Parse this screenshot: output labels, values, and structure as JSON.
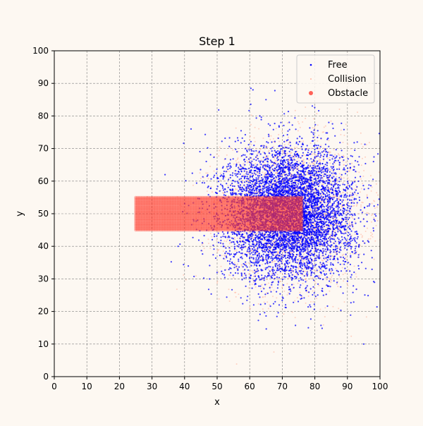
{
  "chart_data": {
    "type": "scatter",
    "title": "Step 1",
    "xlabel": "x",
    "ylabel": "y",
    "xlim": [
      0,
      100
    ],
    "ylim": [
      0,
      100
    ],
    "xticks": [
      0,
      10,
      20,
      30,
      40,
      50,
      60,
      70,
      80,
      90,
      100
    ],
    "yticks": [
      0,
      10,
      20,
      30,
      40,
      50,
      60,
      70,
      80,
      90,
      100
    ],
    "grid": true,
    "legend_position": "top-right",
    "series": [
      {
        "name": "Free",
        "color": "#0000ff",
        "marker": "small-dot",
        "distribution": {
          "center": [
            72,
            50
          ],
          "spread": [
            10,
            10
          ],
          "approx_count": 6000
        },
        "sample_points": [
          [
            61,
            88
          ],
          [
            95,
            10
          ],
          [
            38,
            40
          ],
          [
            78,
            15
          ],
          [
            42,
            76
          ],
          [
            65,
            85
          ],
          [
            98,
            66
          ],
          [
            34,
            62
          ],
          [
            44,
            48
          ],
          [
            93,
            72
          ]
        ]
      },
      {
        "name": "Collision",
        "color": "#ffb6a0",
        "marker": "tiny-dot",
        "distribution": {
          "center": [
            73,
            50
          ],
          "spread": [
            11,
            11
          ],
          "approx_count": 3000
        }
      },
      {
        "name": "Obstacle",
        "color": "#ff3b2f",
        "marker": "circle",
        "grid_x": [
          25,
          76
        ],
        "grid_y": [
          45,
          55
        ],
        "step": 0.5
      }
    ]
  }
}
